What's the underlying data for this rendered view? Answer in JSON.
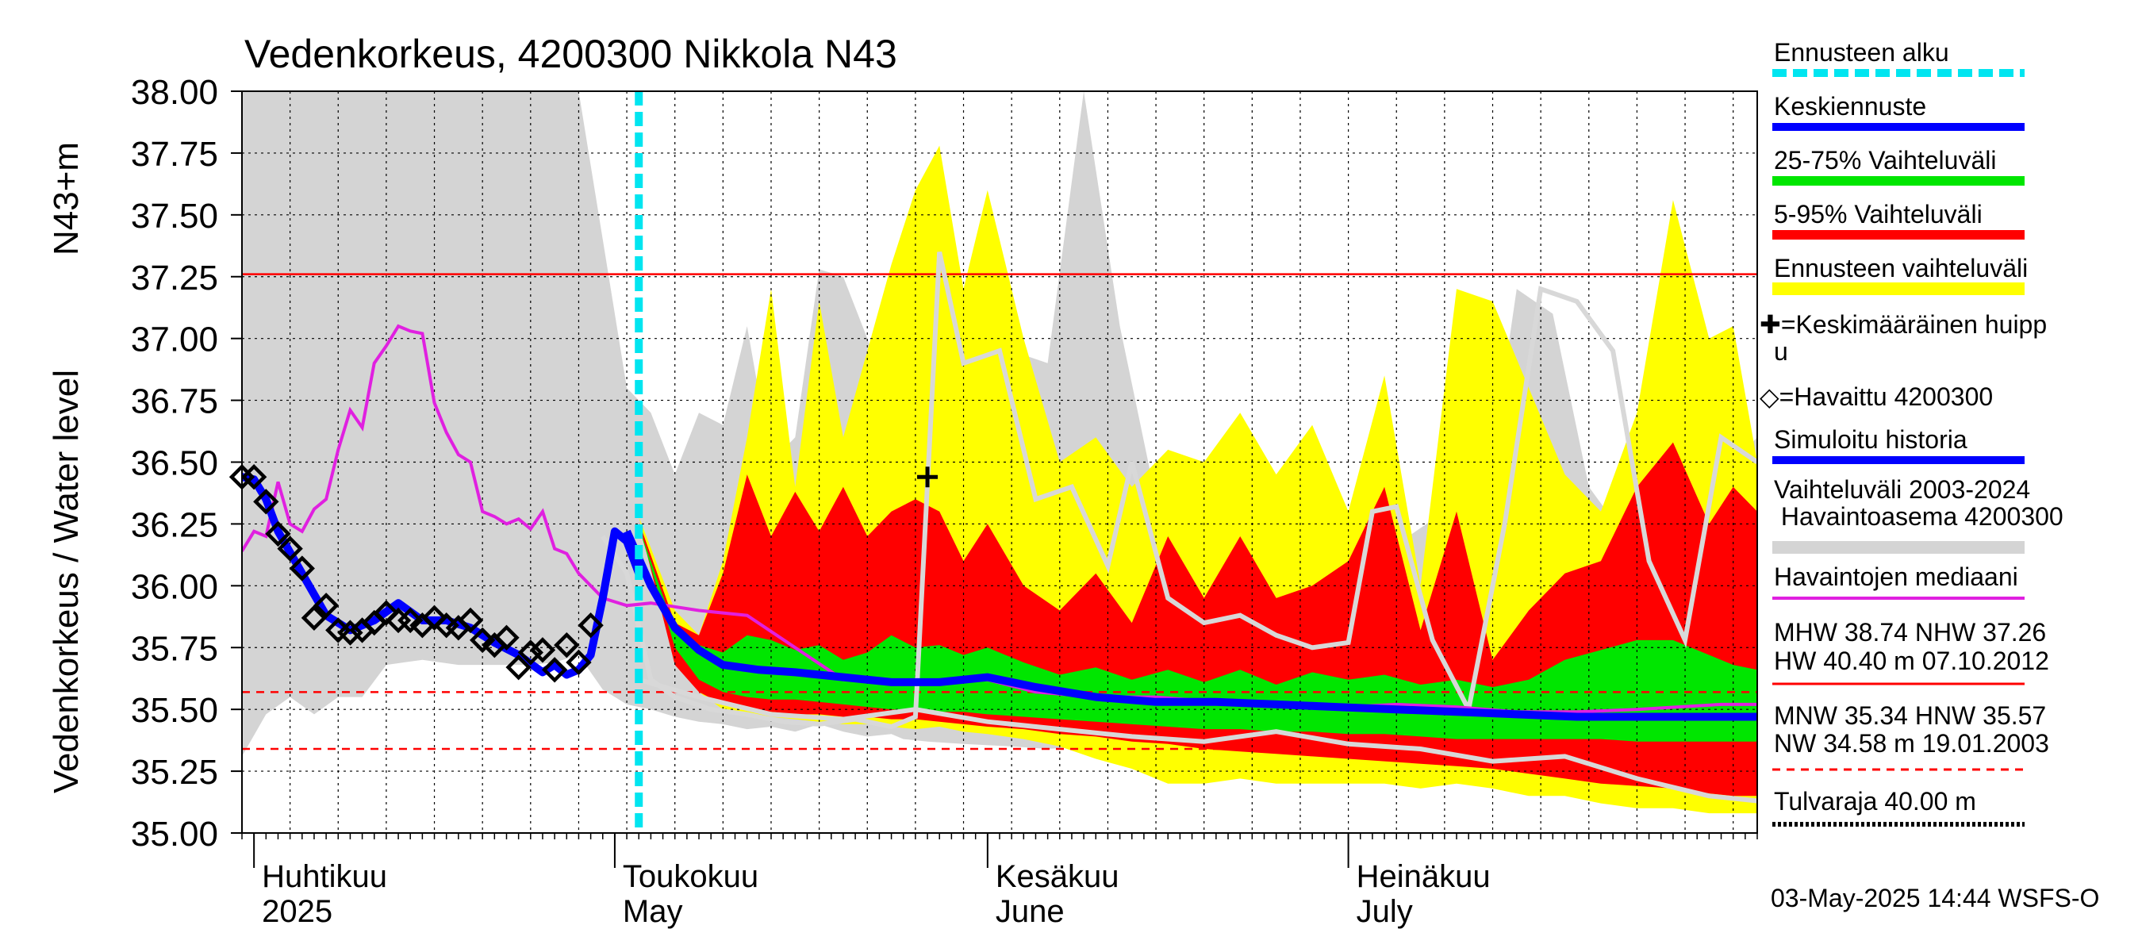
{
  "chart_data": {
    "type": "line",
    "title": "Vedenkorkeus, 4200300 Nikkola N43",
    "ylabel": "Vedenkorkeus / Water level",
    "ylabel_unit": "N43+m",
    "ylim": [
      35.0,
      38.0
    ],
    "y_ticks": [
      "35.00",
      "35.25",
      "35.50",
      "35.75",
      "36.00",
      "36.25",
      "36.50",
      "36.75",
      "37.00",
      "37.25",
      "37.50",
      "37.75",
      "38.00"
    ],
    "x_range": [
      "2025-03-31",
      "2025-08-04"
    ],
    "month_labels": [
      {
        "date": "2025-04-01",
        "fi": "Huhtikuu",
        "en": "2025"
      },
      {
        "date": "2025-05-01",
        "fi": "Toukokuu",
        "en": "May"
      },
      {
        "date": "2025-06-01",
        "fi": "Kesäkuu",
        "en": "June"
      },
      {
        "date": "2025-07-01",
        "fi": "Heinäkuu",
        "en": "July"
      }
    ],
    "forecast_start": "2025-05-03",
    "reference_lines": [
      {
        "value": 37.26,
        "style": "solid",
        "color": "#ff0000"
      },
      {
        "value": 35.57,
        "style": "dashed",
        "color": "#ff0000"
      },
      {
        "value": 35.34,
        "style": "dashed",
        "color": "#ff0000"
      }
    ],
    "legend": {
      "forecast_start": "Ennusteen alku",
      "mean_forecast": "Keskiennuste",
      "band_25_75": "25-75% Vaihteluväli",
      "band_5_95": "5-95% Vaihteluväli",
      "forecast_range": "Ennusteen vaihteluväli",
      "mean_peak_line1": "✚=Keskimääräinen huipp",
      "mean_peak_line2": "u",
      "observed": "◇=Havaittu 4200300",
      "simulated": "Simuloitu historia",
      "hist_range_line1": "Vaihteluväli 2003-2024",
      "hist_range_line2": " Havaintoasema 4200300",
      "median": "Havaintojen mediaani",
      "stats1_line1": "MHW  38.74 NHW  37.26",
      "stats1_line2": "HW  40.40 m 07.10.2012",
      "stats2_line1": "MNW  35.34 HNW  35.57",
      "stats2_line2": "NW  34.58 m 19.01.2003",
      "flood_limit": "Tulvaraja 40.00 m"
    },
    "footer": "03-May-2025 14:44 WSFS-O",
    "colors": {
      "forecast_start": "#00e5f0",
      "mean_forecast": "#0000ff",
      "band_25_75": "#00e600",
      "band_5_95": "#ff0000",
      "forecast_range": "#ffff00",
      "hist_range": "#d4d4d4",
      "median": "#e020e0",
      "observed": "#000000",
      "ref_lines": "#ff0000"
    },
    "mean_peak": {
      "date": "2025-05-27",
      "value": 36.44
    },
    "observed": {
      "x": [
        "2025-03-31",
        "2025-04-01",
        "2025-04-02",
        "2025-04-03",
        "2025-04-04",
        "2025-04-05",
        "2025-04-06",
        "2025-04-07",
        "2025-04-08",
        "2025-04-09",
        "2025-04-10",
        "2025-04-11",
        "2025-04-12",
        "2025-04-13",
        "2025-04-14",
        "2025-04-15",
        "2025-04-16",
        "2025-04-17",
        "2025-04-18",
        "2025-04-19",
        "2025-04-20",
        "2025-04-21",
        "2025-04-22",
        "2025-04-23",
        "2025-04-24",
        "2025-04-25",
        "2025-04-26",
        "2025-04-27",
        "2025-04-28",
        "2025-04-29"
      ],
      "y": [
        36.44,
        36.44,
        36.34,
        36.21,
        36.15,
        36.07,
        35.87,
        35.92,
        35.82,
        35.81,
        35.82,
        35.85,
        35.89,
        35.86,
        35.86,
        35.84,
        35.87,
        35.84,
        35.83,
        35.86,
        35.78,
        35.76,
        35.79,
        35.67,
        35.73,
        35.74,
        35.66,
        35.76,
        35.69,
        35.84
      ]
    },
    "simulated_history": {
      "x": [
        "2025-03-31",
        "2025-04-01",
        "2025-04-02",
        "2025-04-03",
        "2025-04-05",
        "2025-04-07",
        "2025-04-09",
        "2025-04-11",
        "2025-04-13",
        "2025-04-15",
        "2025-04-17",
        "2025-04-19",
        "2025-04-21",
        "2025-04-23",
        "2025-04-25",
        "2025-04-26",
        "2025-04-27",
        "2025-04-28",
        "2025-04-29",
        "2025-04-30",
        "2025-05-01",
        "2025-05-02",
        "2025-05-03"
      ],
      "y": [
        36.44,
        36.43,
        36.35,
        36.22,
        36.05,
        35.88,
        35.82,
        35.86,
        35.93,
        35.86,
        35.86,
        35.83,
        35.77,
        35.72,
        35.65,
        35.68,
        35.64,
        35.66,
        35.72,
        35.95,
        36.22,
        36.18,
        36.05
      ]
    },
    "mean_forecast": {
      "x": [
        "2025-05-02",
        "2025-05-04",
        "2025-05-06",
        "2025-05-08",
        "2025-05-10",
        "2025-05-13",
        "2025-05-16",
        "2025-05-20",
        "2025-05-24",
        "2025-05-28",
        "2025-06-01",
        "2025-06-05",
        "2025-06-10",
        "2025-06-15",
        "2025-06-20",
        "2025-06-25",
        "2025-06-30",
        "2025-07-05",
        "2025-07-10",
        "2025-07-15",
        "2025-07-20",
        "2025-07-25",
        "2025-08-01",
        "2025-08-04"
      ],
      "y": [
        36.22,
        36.0,
        35.83,
        35.74,
        35.68,
        35.66,
        35.65,
        35.63,
        35.61,
        35.61,
        35.63,
        35.59,
        35.55,
        35.53,
        35.53,
        35.52,
        35.51,
        35.5,
        35.49,
        35.48,
        35.47,
        35.47,
        35.47,
        35.47
      ]
    },
    "median": {
      "x": [
        "2025-03-31",
        "2025-04-01",
        "2025-04-02",
        "2025-04-03",
        "2025-04-04",
        "2025-04-05",
        "2025-04-06",
        "2025-04-07",
        "2025-04-08",
        "2025-04-09",
        "2025-04-10",
        "2025-04-11",
        "2025-04-12",
        "2025-04-13",
        "2025-04-14",
        "2025-04-15",
        "2025-04-16",
        "2025-04-17",
        "2025-04-18",
        "2025-04-19",
        "2025-04-20",
        "2025-04-21",
        "2025-04-22",
        "2025-04-23",
        "2025-04-24",
        "2025-04-25",
        "2025-04-26",
        "2025-04-27",
        "2025-04-28",
        "2025-04-30",
        "2025-05-02",
        "2025-05-04",
        "2025-05-08",
        "2025-05-12",
        "2025-05-16",
        "2025-05-20",
        "2025-05-25",
        "2025-06-01",
        "2025-06-05",
        "2025-06-10",
        "2025-06-15",
        "2025-06-20",
        "2025-06-25",
        "2025-07-01",
        "2025-07-05",
        "2025-07-10",
        "2025-07-15",
        "2025-07-20",
        "2025-07-25",
        "2025-08-01",
        "2025-08-04"
      ],
      "y": [
        36.14,
        36.22,
        36.2,
        36.42,
        36.25,
        36.22,
        36.31,
        36.35,
        36.55,
        36.71,
        36.64,
        36.9,
        36.97,
        37.05,
        37.03,
        37.02,
        36.74,
        36.62,
        36.53,
        36.5,
        36.3,
        36.28,
        36.25,
        36.27,
        36.23,
        36.3,
        36.15,
        36.13,
        36.05,
        35.95,
        35.92,
        35.93,
        35.9,
        35.88,
        35.75,
        35.62,
        35.61,
        35.62,
        35.57,
        35.55,
        35.55,
        35.53,
        35.52,
        35.51,
        35.52,
        35.51,
        35.49,
        35.49,
        35.5,
        35.52,
        35.52
      ]
    },
    "hist_range_band": {
      "x": [
        "2025-03-31",
        "2025-04-02",
        "2025-04-04",
        "2025-04-06",
        "2025-04-08",
        "2025-04-10",
        "2025-04-12",
        "2025-04-15",
        "2025-04-18",
        "2025-04-21",
        "2025-04-24",
        "2025-04-26",
        "2025-04-28",
        "2025-04-30",
        "2025-05-02",
        "2025-05-04",
        "2025-05-06",
        "2025-05-08",
        "2025-05-10",
        "2025-05-12",
        "2025-05-14",
        "2025-05-16",
        "2025-05-18",
        "2025-05-20",
        "2025-05-22",
        "2025-05-24",
        "2025-05-25",
        "2025-05-27",
        "2025-05-30",
        "2025-06-03",
        "2025-06-06",
        "2025-06-09",
        "2025-06-12",
        "2025-06-15",
        "2025-06-18",
        "2025-06-21",
        "2025-06-24",
        "2025-06-27",
        "2025-06-30",
        "2025-07-03",
        "2025-07-06",
        "2025-07-09",
        "2025-07-12",
        "2025-07-15",
        "2025-07-18",
        "2025-07-21",
        "2025-07-24",
        "2025-07-27",
        "2025-07-30",
        "2025-08-02",
        "2025-08-04"
      ],
      "upper": [
        38.0,
        38.0,
        38.0,
        38.0,
        38.0,
        38.0,
        38.0,
        38.0,
        38.0,
        38.0,
        38.0,
        38.0,
        38.0,
        37.4,
        36.8,
        36.7,
        36.45,
        36.7,
        36.65,
        37.05,
        36.5,
        36.6,
        37.28,
        37.25,
        37.0,
        36.7,
        37.3,
        36.9,
        37.0,
        36.95,
        36.9,
        38.0,
        37.05,
        36.35,
        36.3,
        36.25,
        36.3,
        36.3,
        36.2,
        36.3,
        36.2,
        36.3,
        36.2,
        37.2,
        37.1,
        36.4,
        36.2,
        36.5,
        36.3,
        36.5,
        36.6
      ],
      "lower": [
        35.31,
        35.48,
        35.55,
        35.48,
        35.55,
        35.55,
        35.68,
        35.7,
        35.68,
        35.68,
        35.68,
        35.69,
        35.72,
        35.58,
        35.52,
        35.5,
        35.47,
        35.45,
        35.44,
        35.42,
        35.43,
        35.41,
        35.44,
        35.41,
        35.39,
        35.4,
        35.38,
        35.37,
        35.36,
        35.35,
        35.34,
        35.35,
        35.33,
        35.33,
        35.31,
        35.32,
        35.3,
        35.29,
        35.25,
        35.23,
        35.25,
        35.22,
        35.2,
        35.18,
        35.18,
        35.15,
        35.14,
        35.13,
        35.12,
        35.1,
        35.09
      ]
    },
    "forecast_range_band": {
      "x": [
        "2025-05-03",
        "2025-05-06",
        "2025-05-08",
        "2025-05-10",
        "2025-05-12",
        "2025-05-14",
        "2025-05-16",
        "2025-05-18",
        "2025-05-20",
        "2025-05-22",
        "2025-05-24",
        "2025-05-26",
        "2025-05-28",
        "2025-05-30",
        "2025-06-01",
        "2025-06-04",
        "2025-06-07",
        "2025-06-10",
        "2025-06-13",
        "2025-06-16",
        "2025-06-19",
        "2025-06-22",
        "2025-06-25",
        "2025-06-28",
        "2025-07-01",
        "2025-07-04",
        "2025-07-07",
        "2025-07-10",
        "2025-07-13",
        "2025-07-16",
        "2025-07-19",
        "2025-07-22",
        "2025-07-25",
        "2025-07-28",
        "2025-07-31",
        "2025-08-02",
        "2025-08-04"
      ],
      "upper": [
        36.28,
        35.9,
        35.8,
        36.1,
        36.6,
        37.2,
        36.4,
        37.15,
        36.6,
        36.95,
        37.3,
        37.6,
        37.78,
        37.2,
        37.6,
        37.0,
        36.5,
        36.6,
        36.4,
        36.55,
        36.5,
        36.7,
        36.45,
        36.65,
        36.3,
        36.85,
        36.0,
        37.2,
        37.15,
        36.8,
        36.45,
        36.3,
        36.7,
        37.56,
        37.0,
        37.05,
        36.5
      ],
      "lower": [
        36.28,
        35.7,
        35.57,
        35.5,
        35.48,
        35.47,
        35.46,
        35.45,
        35.44,
        35.44,
        35.43,
        35.42,
        35.43,
        35.41,
        35.4,
        35.38,
        35.35,
        35.3,
        35.26,
        35.2,
        35.2,
        35.22,
        35.2,
        35.2,
        35.2,
        35.2,
        35.18,
        35.2,
        35.18,
        35.15,
        35.15,
        35.12,
        35.1,
        35.1,
        35.08,
        35.08,
        35.08
      ]
    },
    "band_5_95": {
      "x": [
        "2025-05-03",
        "2025-05-06",
        "2025-05-08",
        "2025-05-10",
        "2025-05-12",
        "2025-05-14",
        "2025-05-16",
        "2025-05-18",
        "2025-05-20",
        "2025-05-22",
        "2025-05-24",
        "2025-05-26",
        "2025-05-28",
        "2025-05-30",
        "2025-06-01",
        "2025-06-04",
        "2025-06-07",
        "2025-06-10",
        "2025-06-13",
        "2025-06-16",
        "2025-06-19",
        "2025-06-22",
        "2025-06-25",
        "2025-06-28",
        "2025-07-01",
        "2025-07-04",
        "2025-07-07",
        "2025-07-10",
        "2025-07-13",
        "2025-07-16",
        "2025-07-19",
        "2025-07-22",
        "2025-07-25",
        "2025-07-28",
        "2025-07-31",
        "2025-08-02",
        "2025-08-04"
      ],
      "upper": [
        36.26,
        35.85,
        35.8,
        36.05,
        36.45,
        36.2,
        36.38,
        36.22,
        36.4,
        36.2,
        36.3,
        36.35,
        36.3,
        36.1,
        36.25,
        36.0,
        35.9,
        36.05,
        35.85,
        36.2,
        35.95,
        36.2,
        35.95,
        36.0,
        36.1,
        36.4,
        35.82,
        36.3,
        35.7,
        35.9,
        36.05,
        36.1,
        36.4,
        36.58,
        36.25,
        36.4,
        36.3
      ],
      "lower": [
        36.26,
        35.68,
        35.57,
        35.52,
        35.5,
        35.49,
        35.48,
        35.48,
        35.47,
        35.47,
        35.46,
        35.46,
        35.45,
        35.44,
        35.43,
        35.42,
        35.4,
        35.39,
        35.37,
        35.36,
        35.34,
        35.33,
        35.32,
        35.31,
        35.3,
        35.29,
        35.28,
        35.27,
        35.26,
        35.24,
        35.22,
        35.2,
        35.19,
        35.18,
        35.16,
        35.15,
        35.15
      ]
    },
    "band_25_75": {
      "x": [
        "2025-05-03",
        "2025-05-06",
        "2025-05-08",
        "2025-05-10",
        "2025-05-12",
        "2025-05-14",
        "2025-05-16",
        "2025-05-18",
        "2025-05-20",
        "2025-05-22",
        "2025-05-24",
        "2025-05-26",
        "2025-05-28",
        "2025-05-30",
        "2025-06-01",
        "2025-06-04",
        "2025-06-07",
        "2025-06-10",
        "2025-06-13",
        "2025-06-16",
        "2025-06-19",
        "2025-06-22",
        "2025-06-25",
        "2025-06-28",
        "2025-07-01",
        "2025-07-04",
        "2025-07-07",
        "2025-07-10",
        "2025-07-13",
        "2025-07-16",
        "2025-07-19",
        "2025-07-22",
        "2025-07-25",
        "2025-07-28",
        "2025-07-31",
        "2025-08-02",
        "2025-08-04"
      ],
      "upper": [
        36.24,
        35.82,
        35.76,
        35.73,
        35.8,
        35.78,
        35.74,
        35.76,
        35.7,
        35.73,
        35.8,
        35.75,
        35.76,
        35.72,
        35.75,
        35.69,
        35.64,
        35.67,
        35.62,
        35.66,
        35.61,
        35.66,
        35.6,
        35.65,
        35.62,
        35.64,
        35.6,
        35.62,
        35.59,
        35.62,
        35.7,
        35.74,
        35.78,
        35.78,
        35.72,
        35.68,
        35.66
      ],
      "lower": [
        36.24,
        35.75,
        35.62,
        35.57,
        35.55,
        35.54,
        35.54,
        35.53,
        35.52,
        35.51,
        35.5,
        35.5,
        35.49,
        35.49,
        35.48,
        35.47,
        35.46,
        35.45,
        35.44,
        35.43,
        35.42,
        35.42,
        35.41,
        35.41,
        35.4,
        35.4,
        35.39,
        35.38,
        35.38,
        35.38,
        35.38,
        35.38,
        35.37,
        35.37,
        35.37,
        35.37,
        35.37
      ]
    },
    "hist_line": {
      "x": [
        "2025-04-30",
        "2025-05-02",
        "2025-05-04",
        "2025-05-06",
        "2025-05-09",
        "2025-05-12",
        "2025-05-15",
        "2025-05-18",
        "2025-05-21",
        "2025-05-24",
        "2025-05-26",
        "2025-05-28",
        "2025-05-30",
        "2025-06-02",
        "2025-06-05",
        "2025-06-08",
        "2025-06-11",
        "2025-06-13",
        "2025-06-16",
        "2025-06-19",
        "2025-06-22",
        "2025-06-25",
        "2025-06-28",
        "2025-07-01",
        "2025-07-03",
        "2025-07-05",
        "2025-07-08",
        "2025-07-11",
        "2025-07-14",
        "2025-07-17",
        "2025-07-20",
        "2025-07-23",
        "2025-07-26",
        "2025-07-29",
        "2025-08-01",
        "2025-08-04"
      ],
      "y": [
        36.2,
        36.05,
        35.62,
        35.55,
        35.5,
        35.48,
        35.45,
        35.44,
        35.46,
        35.43,
        35.47,
        37.35,
        36.9,
        36.95,
        36.35,
        36.4,
        36.08,
        36.5,
        35.95,
        35.85,
        35.88,
        35.8,
        35.75,
        35.77,
        36.3,
        36.32,
        35.78,
        35.5,
        36.25,
        37.2,
        37.15,
        36.95,
        36.1,
        35.78,
        36.6,
        36.5
      ]
    },
    "hist_line2": {
      "x": [
        "2025-05-03",
        "2025-05-08",
        "2025-05-14",
        "2025-05-20",
        "2025-05-26",
        "2025-06-01",
        "2025-06-07",
        "2025-06-13",
        "2025-06-19",
        "2025-06-25",
        "2025-07-01",
        "2025-07-07",
        "2025-07-13",
        "2025-07-19",
        "2025-07-25",
        "2025-07-31",
        "2025-08-04"
      ],
      "y": [
        35.62,
        35.55,
        35.48,
        35.46,
        35.5,
        35.45,
        35.42,
        35.39,
        35.37,
        35.41,
        35.36,
        35.34,
        35.29,
        35.31,
        35.22,
        35.15,
        35.13
      ]
    }
  }
}
